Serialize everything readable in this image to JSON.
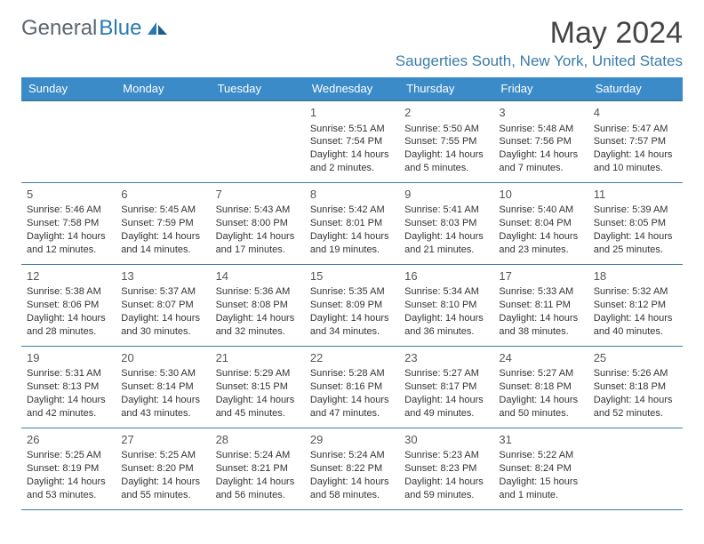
{
  "brand": {
    "part1": "General",
    "part2": "Blue"
  },
  "title": "May 2024",
  "location": "Saugerties South, New York, United States",
  "colors": {
    "header_bg": "#3b8bc9",
    "rule": "#3b7ca8",
    "brand_gray": "#5b6670",
    "brand_blue": "#2a7ab0",
    "location_color": "#3b7ca8"
  },
  "weekdays": [
    "Sunday",
    "Monday",
    "Tuesday",
    "Wednesday",
    "Thursday",
    "Friday",
    "Saturday"
  ],
  "weeks": [
    [
      null,
      null,
      null,
      {
        "n": "1",
        "sr": "5:51 AM",
        "ss": "7:54 PM",
        "dl": "14 hours and 2 minutes."
      },
      {
        "n": "2",
        "sr": "5:50 AM",
        "ss": "7:55 PM",
        "dl": "14 hours and 5 minutes."
      },
      {
        "n": "3",
        "sr": "5:48 AM",
        "ss": "7:56 PM",
        "dl": "14 hours and 7 minutes."
      },
      {
        "n": "4",
        "sr": "5:47 AM",
        "ss": "7:57 PM",
        "dl": "14 hours and 10 minutes."
      }
    ],
    [
      {
        "n": "5",
        "sr": "5:46 AM",
        "ss": "7:58 PM",
        "dl": "14 hours and 12 minutes."
      },
      {
        "n": "6",
        "sr": "5:45 AM",
        "ss": "7:59 PM",
        "dl": "14 hours and 14 minutes."
      },
      {
        "n": "7",
        "sr": "5:43 AM",
        "ss": "8:00 PM",
        "dl": "14 hours and 17 minutes."
      },
      {
        "n": "8",
        "sr": "5:42 AM",
        "ss": "8:01 PM",
        "dl": "14 hours and 19 minutes."
      },
      {
        "n": "9",
        "sr": "5:41 AM",
        "ss": "8:03 PM",
        "dl": "14 hours and 21 minutes."
      },
      {
        "n": "10",
        "sr": "5:40 AM",
        "ss": "8:04 PM",
        "dl": "14 hours and 23 minutes."
      },
      {
        "n": "11",
        "sr": "5:39 AM",
        "ss": "8:05 PM",
        "dl": "14 hours and 25 minutes."
      }
    ],
    [
      {
        "n": "12",
        "sr": "5:38 AM",
        "ss": "8:06 PM",
        "dl": "14 hours and 28 minutes."
      },
      {
        "n": "13",
        "sr": "5:37 AM",
        "ss": "8:07 PM",
        "dl": "14 hours and 30 minutes."
      },
      {
        "n": "14",
        "sr": "5:36 AM",
        "ss": "8:08 PM",
        "dl": "14 hours and 32 minutes."
      },
      {
        "n": "15",
        "sr": "5:35 AM",
        "ss": "8:09 PM",
        "dl": "14 hours and 34 minutes."
      },
      {
        "n": "16",
        "sr": "5:34 AM",
        "ss": "8:10 PM",
        "dl": "14 hours and 36 minutes."
      },
      {
        "n": "17",
        "sr": "5:33 AM",
        "ss": "8:11 PM",
        "dl": "14 hours and 38 minutes."
      },
      {
        "n": "18",
        "sr": "5:32 AM",
        "ss": "8:12 PM",
        "dl": "14 hours and 40 minutes."
      }
    ],
    [
      {
        "n": "19",
        "sr": "5:31 AM",
        "ss": "8:13 PM",
        "dl": "14 hours and 42 minutes."
      },
      {
        "n": "20",
        "sr": "5:30 AM",
        "ss": "8:14 PM",
        "dl": "14 hours and 43 minutes."
      },
      {
        "n": "21",
        "sr": "5:29 AM",
        "ss": "8:15 PM",
        "dl": "14 hours and 45 minutes."
      },
      {
        "n": "22",
        "sr": "5:28 AM",
        "ss": "8:16 PM",
        "dl": "14 hours and 47 minutes."
      },
      {
        "n": "23",
        "sr": "5:27 AM",
        "ss": "8:17 PM",
        "dl": "14 hours and 49 minutes."
      },
      {
        "n": "24",
        "sr": "5:27 AM",
        "ss": "8:18 PM",
        "dl": "14 hours and 50 minutes."
      },
      {
        "n": "25",
        "sr": "5:26 AM",
        "ss": "8:18 PM",
        "dl": "14 hours and 52 minutes."
      }
    ],
    [
      {
        "n": "26",
        "sr": "5:25 AM",
        "ss": "8:19 PM",
        "dl": "14 hours and 53 minutes."
      },
      {
        "n": "27",
        "sr": "5:25 AM",
        "ss": "8:20 PM",
        "dl": "14 hours and 55 minutes."
      },
      {
        "n": "28",
        "sr": "5:24 AM",
        "ss": "8:21 PM",
        "dl": "14 hours and 56 minutes."
      },
      {
        "n": "29",
        "sr": "5:24 AM",
        "ss": "8:22 PM",
        "dl": "14 hours and 58 minutes."
      },
      {
        "n": "30",
        "sr": "5:23 AM",
        "ss": "8:23 PM",
        "dl": "14 hours and 59 minutes."
      },
      {
        "n": "31",
        "sr": "5:22 AM",
        "ss": "8:24 PM",
        "dl": "15 hours and 1 minute."
      },
      null
    ]
  ],
  "labels": {
    "sunrise": "Sunrise: ",
    "sunset": "Sunset: ",
    "daylight": "Daylight: "
  }
}
